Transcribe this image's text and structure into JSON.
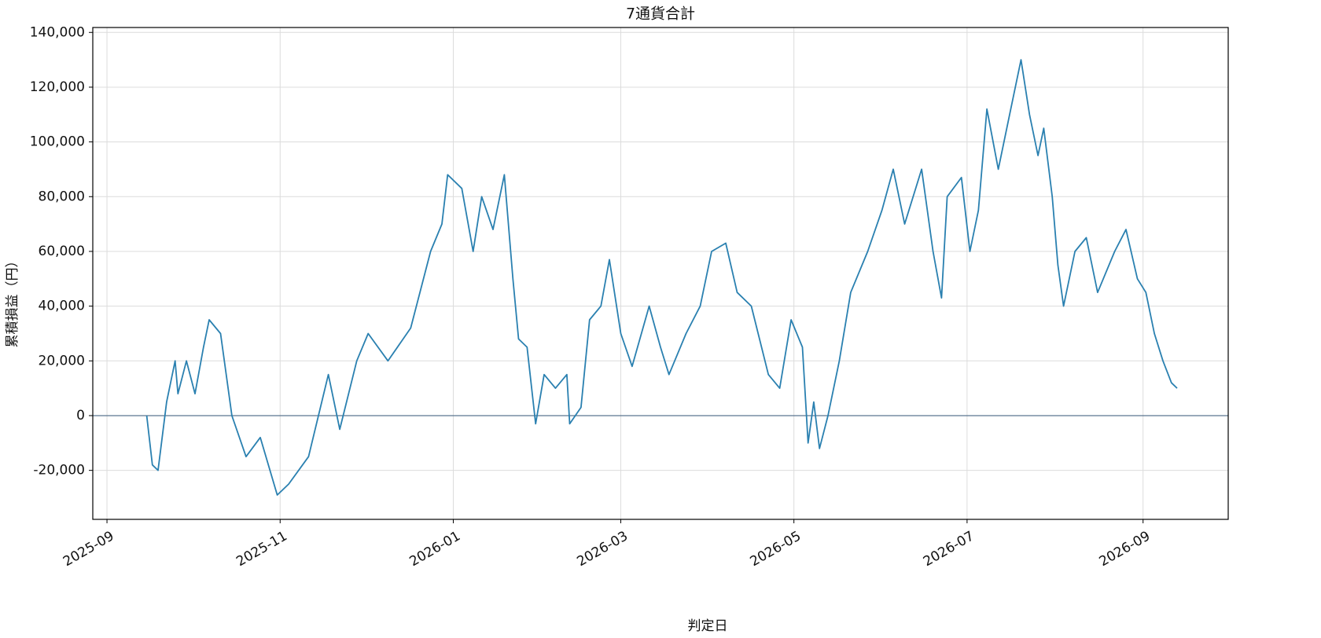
{
  "chart_data": {
    "type": "line",
    "title": "7通貨合計",
    "x_label": "判定日",
    "y_label": "累積損益（円）",
    "color": "#2a80b0",
    "grid": true,
    "reference_line": 0,
    "reference_color": "#5a7690",
    "x": [
      "2025-09-15",
      "2025-09-17",
      "2025-09-19",
      "2025-09-22",
      "2025-09-25",
      "2025-09-26",
      "2025-09-29",
      "2025-10-02",
      "2025-10-05",
      "2025-10-07",
      "2025-10-11",
      "2025-10-15",
      "2025-10-20",
      "2025-10-25",
      "2025-10-31",
      "2025-11-04",
      "2025-11-11",
      "2025-11-18",
      "2025-11-22",
      "2025-11-28",
      "2025-12-02",
      "2025-12-09",
      "2025-12-17",
      "2025-12-24",
      "2025-12-28",
      "2025-12-30",
      "2026-01-04",
      "2026-01-08",
      "2026-01-11",
      "2026-01-15",
      "2026-01-19",
      "2026-01-22",
      "2026-01-24",
      "2026-01-27",
      "2026-01-30",
      "2026-02-02",
      "2026-02-06",
      "2026-02-10",
      "2026-02-11",
      "2026-02-15",
      "2026-02-18",
      "2026-02-22",
      "2026-02-25",
      "2026-03-01",
      "2026-03-05",
      "2026-03-11",
      "2026-03-15",
      "2026-03-18",
      "2026-03-24",
      "2026-03-29",
      "2026-04-02",
      "2026-04-07",
      "2026-04-11",
      "2026-04-16",
      "2026-04-22",
      "2026-04-26",
      "2026-04-30",
      "2026-05-04",
      "2026-05-06",
      "2026-05-08",
      "2026-05-10",
      "2026-05-13",
      "2026-05-17",
      "2026-05-21",
      "2026-05-27",
      "2026-06-01",
      "2026-06-05",
      "2026-06-09",
      "2026-06-15",
      "2026-06-19",
      "2026-06-22",
      "2026-06-24",
      "2026-06-29",
      "2026-07-02",
      "2026-07-05",
      "2026-07-08",
      "2026-07-12",
      "2026-07-16",
      "2026-07-20",
      "2026-07-23",
      "2026-07-26",
      "2026-07-28",
      "2026-07-31",
      "2026-08-02",
      "2026-08-04",
      "2026-08-08",
      "2026-08-12",
      "2026-08-16",
      "2026-08-22",
      "2026-08-26",
      "2026-08-30",
      "2026-09-02",
      "2026-09-05",
      "2026-09-08",
      "2026-09-11",
      "2026-09-13"
    ],
    "values": [
      0,
      -18000,
      -20000,
      5000,
      20000,
      8000,
      20000,
      8000,
      25000,
      35000,
      30000,
      0,
      -15000,
      -8000,
      -29000,
      -25000,
      -15000,
      15000,
      -5000,
      20000,
      30000,
      20000,
      32000,
      60000,
      70000,
      88000,
      83000,
      60000,
      80000,
      68000,
      88000,
      50000,
      28000,
      25000,
      -3000,
      15000,
      10000,
      15000,
      -3000,
      3000,
      35000,
      40000,
      57000,
      30000,
      18000,
      40000,
      25000,
      15000,
      30000,
      40000,
      60000,
      63000,
      45000,
      40000,
      15000,
      10000,
      35000,
      25000,
      -10000,
      5000,
      -12000,
      0,
      20000,
      45000,
      60000,
      75000,
      90000,
      70000,
      90000,
      60000,
      43000,
      80000,
      87000,
      60000,
      75000,
      112000,
      90000,
      110000,
      130000,
      110000,
      95000,
      105000,
      80000,
      55000,
      40000,
      60000,
      65000,
      45000,
      60000,
      68000,
      50000,
      45000,
      30000,
      20000,
      12000,
      10000
    ],
    "xlim": [
      "2025-08-27",
      "2026-10-01"
    ],
    "xticks": [
      "2025-09",
      "2025-11",
      "2026-01",
      "2026-03",
      "2026-05",
      "2026-07",
      "2026-09"
    ],
    "ylim": [
      -37900,
      141800
    ],
    "yticks": [
      {
        "value": -20000,
        "label": "-20,000"
      },
      0,
      {
        "value": 20000,
        "label": "20,000"
      },
      {
        "value": 40000,
        "label": "40,000"
      },
      {
        "value": 60000,
        "label": "60,000"
      },
      {
        "value": 80000,
        "label": "80,000"
      },
      {
        "value": 100000,
        "label": "100,000"
      },
      {
        "value": 120000,
        "label": "120,000"
      },
      {
        "value": 140000,
        "label": "140,000"
      }
    ]
  }
}
